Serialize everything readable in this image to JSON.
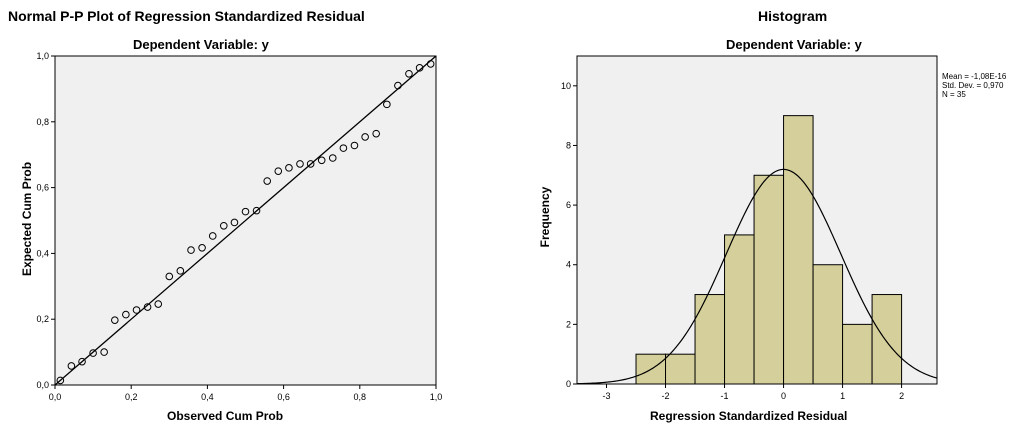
{
  "pp_plot": {
    "title": "Normal P-P Plot of Regression Standardized Residual",
    "subtitle": "Dependent Variable: y",
    "xlabel": "Observed Cum Prob",
    "ylabel": "Expected Cum Prob"
  },
  "histogram": {
    "title": "Histogram",
    "subtitle": "Dependent Variable: y",
    "xlabel": "Regression Standardized Residual",
    "ylabel": "Frequency",
    "stats": {
      "mean": "Mean = -1,08E-16",
      "std": "Std. Dev. = 0,970",
      "n": "N = 35"
    }
  },
  "colors": {
    "plot_bg": "#f0f0f0",
    "bar_fill": "#d4cf9b",
    "axis": "#000000"
  },
  "chart_data": [
    {
      "type": "scatter",
      "title": "Normal P-P Plot of Regression Standardized Residual",
      "subtitle": "Dependent Variable: y",
      "xlabel": "Observed Cum Prob",
      "ylabel": "Expected Cum Prob",
      "xlim": [
        0,
        1
      ],
      "ylim": [
        0,
        1
      ],
      "x_ticks": [
        "0,0",
        "0,2",
        "0,4",
        "0,6",
        "0,8",
        "1,0"
      ],
      "y_ticks": [
        "0,0",
        "0,2",
        "0,4",
        "0,6",
        "0,8",
        "1,0"
      ],
      "reference_line": [
        [
          0,
          0
        ],
        [
          1,
          1
        ]
      ],
      "points": [
        [
          0.014,
          0.014
        ],
        [
          0.043,
          0.058
        ],
        [
          0.071,
          0.071
        ],
        [
          0.1,
          0.097
        ],
        [
          0.129,
          0.1
        ],
        [
          0.157,
          0.197
        ],
        [
          0.186,
          0.214
        ],
        [
          0.214,
          0.228
        ],
        [
          0.243,
          0.237
        ],
        [
          0.271,
          0.246
        ],
        [
          0.3,
          0.33
        ],
        [
          0.329,
          0.347
        ],
        [
          0.357,
          0.41
        ],
        [
          0.386,
          0.417
        ],
        [
          0.414,
          0.453
        ],
        [
          0.443,
          0.484
        ],
        [
          0.471,
          0.494
        ],
        [
          0.5,
          0.527
        ],
        [
          0.529,
          0.53
        ],
        [
          0.557,
          0.62
        ],
        [
          0.586,
          0.65
        ],
        [
          0.614,
          0.66
        ],
        [
          0.643,
          0.672
        ],
        [
          0.671,
          0.672
        ],
        [
          0.7,
          0.683
        ],
        [
          0.729,
          0.69
        ],
        [
          0.757,
          0.72
        ],
        [
          0.786,
          0.728
        ],
        [
          0.814,
          0.754
        ],
        [
          0.843,
          0.764
        ],
        [
          0.871,
          0.853
        ],
        [
          0.9,
          0.91
        ],
        [
          0.929,
          0.946
        ],
        [
          0.957,
          0.964
        ],
        [
          0.986,
          0.976
        ]
      ],
      "grid": false
    },
    {
      "type": "bar",
      "title": "Histogram",
      "subtitle": "Dependent Variable: y",
      "xlabel": "Regression Standardized Residual",
      "ylabel": "Frequency",
      "xlim": [
        -3.5,
        2.6
      ],
      "ylim": [
        0,
        11
      ],
      "x_ticks": [
        -3,
        -2,
        -1,
        0,
        1,
        2
      ],
      "y_ticks": [
        0,
        2,
        4,
        6,
        8,
        10
      ],
      "bin_width": 0.5,
      "bins": [
        {
          "start": -2.5,
          "count": 1
        },
        {
          "start": -2.0,
          "count": 1
        },
        {
          "start": -1.5,
          "count": 3
        },
        {
          "start": -1.0,
          "count": 5
        },
        {
          "start": -0.5,
          "count": 7
        },
        {
          "start": 0.0,
          "count": 9
        },
        {
          "start": 0.5,
          "count": 4
        },
        {
          "start": 1.0,
          "count": 2
        },
        {
          "start": 1.5,
          "count": 3
        }
      ],
      "normal_curve": {
        "mean": -1.08e-16,
        "std": 0.97,
        "n": 35
      },
      "legend_position": "top-right",
      "grid": false
    }
  ]
}
